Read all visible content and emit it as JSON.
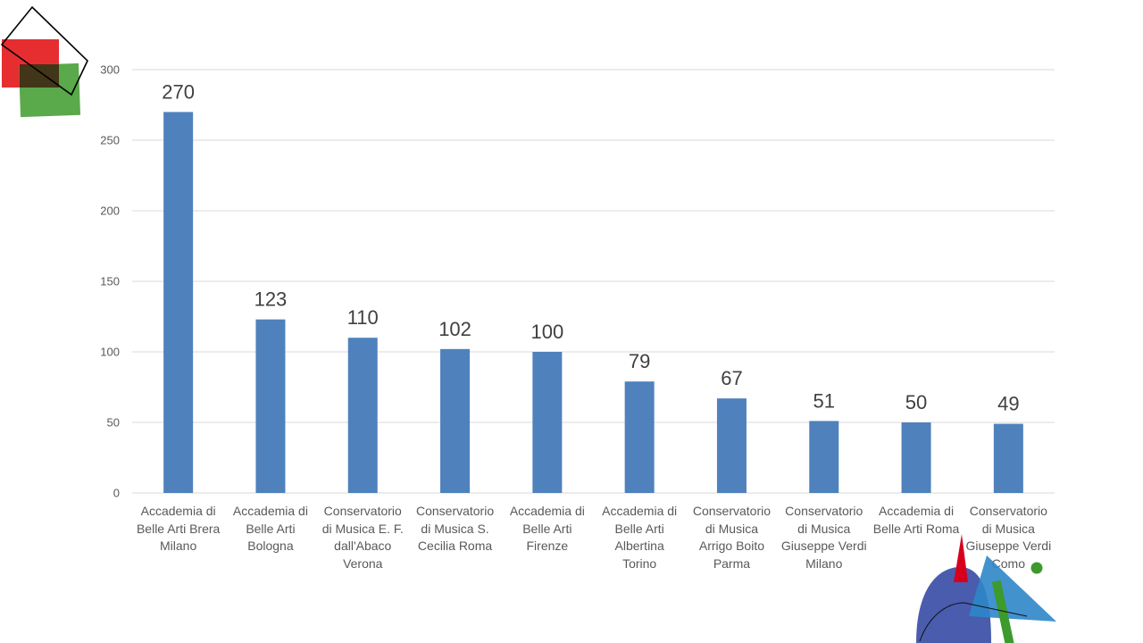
{
  "chart_data": {
    "type": "bar",
    "categories": [
      "Accademia di\nBelle Arti Brera\nMilano",
      "Accademia di\nBelle Arti\nBologna",
      "Conservatorio\ndi Musica E. F.\ndall'Abaco\nVerona",
      "Conservatorio\ndi Musica S.\nCecilia Roma",
      "Accademia di\nBelle Arti\nFirenze",
      "Accademia di\nBelle Arti\nAlbertina\nTorino",
      "Conservatorio\ndi Musica\nArrigo Boito\nParma",
      "Conservatorio\ndi Musica\nGiuseppe Verdi\nMilano",
      "Accademia di\nBelle Arti Roma",
      "Conservatorio\ndi Musica\nGiuseppe Verdi\nComo"
    ],
    "values": [
      270,
      123,
      110,
      102,
      100,
      79,
      67,
      51,
      50,
      49
    ],
    "data_labels": [
      "270",
      "123",
      "110",
      "102",
      "100",
      "79",
      "67",
      "51",
      "50",
      "49"
    ],
    "y_ticks": [
      "0",
      "50",
      "100",
      "150",
      "200",
      "250",
      "300"
    ],
    "ylim": [
      0,
      300
    ],
    "grid": true,
    "legend": "none",
    "colors": {
      "bar": "#4f81bd",
      "grid": "#d9d9d9",
      "text": "#595959",
      "data_label": "#404040"
    }
  },
  "decorations": {
    "top_left_logo": {
      "colors": [
        "#e3171b",
        "#3d9a2c",
        "#000000"
      ]
    },
    "bottom_right_logo": {
      "colors": [
        "#2a3f9f",
        "#2e86c9",
        "#d6001c",
        "#3d9a2c"
      ]
    }
  }
}
